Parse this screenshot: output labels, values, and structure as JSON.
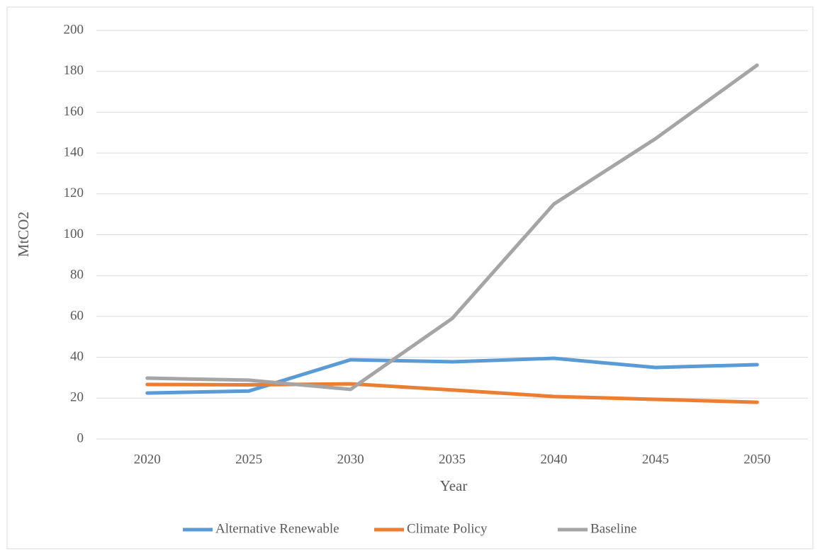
{
  "chart_data": {
    "type": "line",
    "x_label": "Year",
    "y_label": "MtCO2",
    "categories": [
      "2020",
      "2025",
      "2030",
      "2035",
      "2040",
      "2045",
      "2050"
    ],
    "series": [
      {
        "name": "Alternative Renewable",
        "color": "#5b9bd5",
        "values": [
          22.5,
          23.5,
          38.8,
          37.8,
          39.5,
          35,
          36.4
        ]
      },
      {
        "name": "Climate Policy",
        "color": "#ed7d31",
        "values": [
          26.7,
          26.5,
          27,
          24,
          20.8,
          19.4,
          18
        ]
      },
      {
        "name": "Baseline",
        "color": "#a5a5a5",
        "values": [
          29.8,
          28.8,
          24.3,
          59,
          115,
          147,
          183
        ]
      }
    ],
    "ylim": [
      0,
      200
    ],
    "yticks": [
      0,
      20,
      40,
      60,
      80,
      100,
      120,
      140,
      160,
      180,
      200
    ],
    "grid": true,
    "legend": "bottom"
  }
}
